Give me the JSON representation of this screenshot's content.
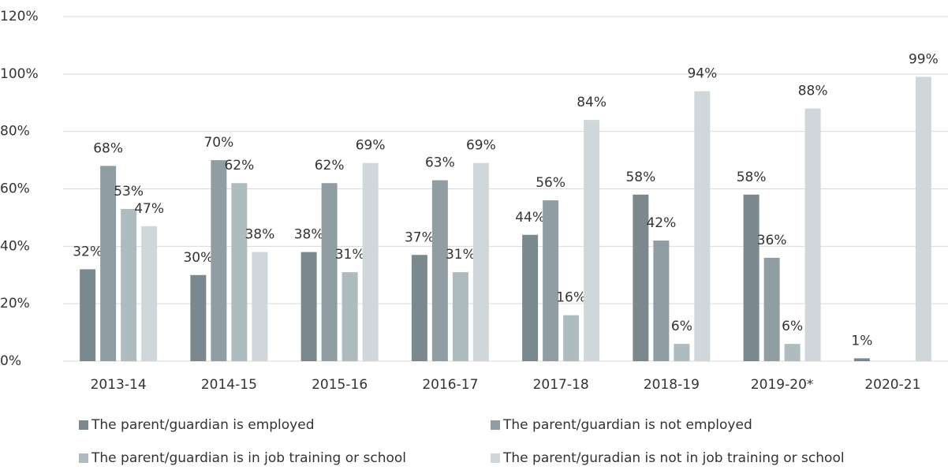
{
  "chart_data": {
    "type": "bar",
    "categories": [
      "2013-14",
      "2014-15",
      "2015-16",
      "2016-17",
      "2017-18",
      "2018-19",
      "2019-20*",
      "2020-21"
    ],
    "series": [
      {
        "name": "The parent/guardian is employed",
        "color": "#7b898e",
        "values": [
          32,
          30,
          38,
          37,
          44,
          58,
          58,
          1
        ],
        "value_labels": [
          "32%",
          "30%",
          "38%",
          "37%",
          "44%",
          "58%",
          "58%",
          "1%"
        ]
      },
      {
        "name": "The parent/guardian is not employed",
        "color": "#909ea3",
        "values": [
          68,
          70,
          62,
          63,
          56,
          42,
          36,
          null
        ],
        "value_labels": [
          "68%",
          "70%",
          "62%",
          "63%",
          "56%",
          "42%",
          "36%",
          null
        ]
      },
      {
        "name": "The parent/guardian is in job training or school",
        "color": "#aebbbf",
        "values": [
          53,
          62,
          31,
          31,
          16,
          6,
          6,
          null
        ],
        "value_labels": [
          "53%",
          "62%",
          "31%",
          "31%",
          "16%",
          "6%",
          "6%",
          null
        ]
      },
      {
        "name": "The parent/guradian is not in job training or school",
        "color": "#d0d7da",
        "values": [
          47,
          38,
          69,
          69,
          84,
          94,
          88,
          99
        ],
        "value_labels": [
          "47%",
          "38%",
          "69%",
          "69%",
          "84%",
          "94%",
          "88%",
          "99%"
        ]
      }
    ],
    "ylim": [
      0,
      120
    ],
    "yticks": [
      {
        "value": 0,
        "label": "0%"
      },
      {
        "value": 20,
        "label": "20%"
      },
      {
        "value": 40,
        "label": "40%"
      },
      {
        "value": 60,
        "label": "60%"
      },
      {
        "value": 80,
        "label": "80%"
      },
      {
        "value": 100,
        "label": "100%"
      },
      {
        "value": 120,
        "label": "120%"
      }
    ],
    "grid": true
  }
}
